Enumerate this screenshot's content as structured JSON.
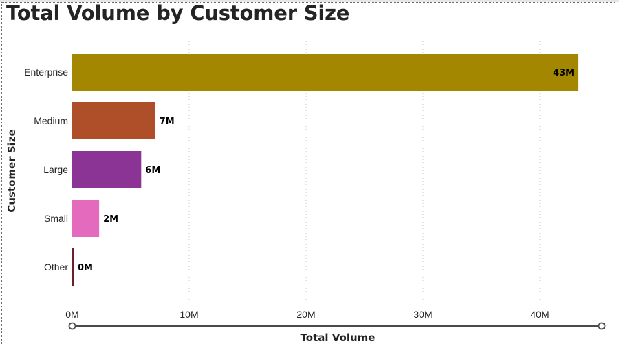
{
  "chart_data": {
    "type": "bar",
    "orientation": "horizontal",
    "title": "Total Volume by Customer Size",
    "xlabel": "Total Volume",
    "ylabel": "Customer Size",
    "categories": [
      "Enterprise",
      "Medium",
      "Large",
      "Small",
      "Other"
    ],
    "values": [
      43.3,
      7.1,
      5.9,
      2.3,
      0.1
    ],
    "data_labels": [
      "43M",
      "7M",
      "6M",
      "2M",
      "0M"
    ],
    "colors": [
      "#A38700",
      "#AE4F2A",
      "#8B3495",
      "#E46ABD",
      "#6B1F2A"
    ],
    "xlim": [
      0,
      45
    ],
    "xticks": [
      0,
      10,
      20,
      30,
      40
    ],
    "xtick_labels": [
      "0M",
      "10M",
      "20M",
      "30M",
      "40M"
    ],
    "grid": "vertical-dotted",
    "legend": "none"
  }
}
